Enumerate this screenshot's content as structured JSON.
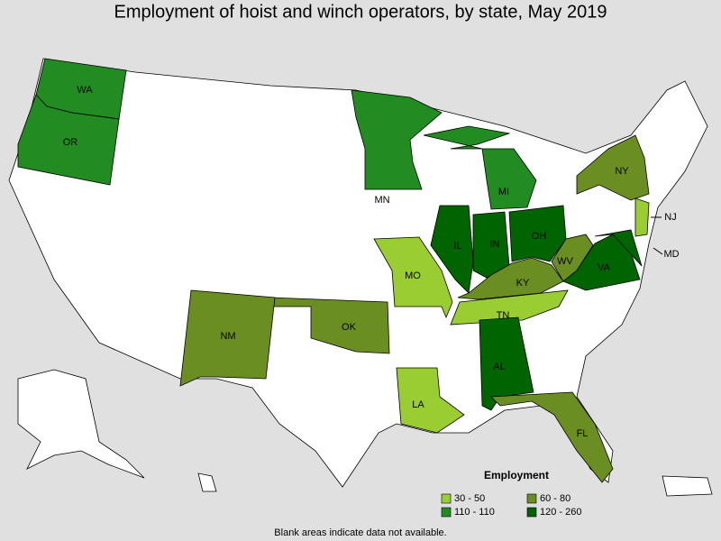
{
  "title": "Employment of hoist and winch operators, by state, May 2019",
  "legend": {
    "title": "Employment",
    "items": [
      {
        "label": "30 - 50",
        "color": "#9acd32"
      },
      {
        "label": "60 - 80",
        "color": "#6b8e23"
      },
      {
        "label": "110 - 110",
        "color": "#228b22"
      },
      {
        "label": "120 - 260",
        "color": "#006400"
      }
    ]
  },
  "states": [
    {
      "label": "WA",
      "color": "#228b22"
    },
    {
      "label": "OR",
      "color": "#228b22"
    },
    {
      "label": "MN",
      "color": "#228b22"
    },
    {
      "label": "MI",
      "color": "#228b22"
    },
    {
      "label": "NY",
      "color": "#6b8e23"
    },
    {
      "label": "NJ",
      "color": "#9acd32"
    },
    {
      "label": "IL",
      "color": "#006400"
    },
    {
      "label": "IN",
      "color": "#006400"
    },
    {
      "label": "OH",
      "color": "#006400"
    },
    {
      "label": "WV",
      "color": "#6b8e23"
    },
    {
      "label": "VA",
      "color": "#006400"
    },
    {
      "label": "MD",
      "color": "#006400"
    },
    {
      "label": "KY",
      "color": "#6b8e23"
    },
    {
      "label": "TN",
      "color": "#9acd32"
    },
    {
      "label": "MO",
      "color": "#9acd32"
    },
    {
      "label": "OK",
      "color": "#6b8e23"
    },
    {
      "label": "NM",
      "color": "#6b8e23"
    },
    {
      "label": "LA",
      "color": "#9acd32"
    },
    {
      "label": "AL",
      "color": "#006400"
    },
    {
      "label": "FL",
      "color": "#6b8e23"
    }
  ],
  "note": "Blank areas indicate data not available."
}
